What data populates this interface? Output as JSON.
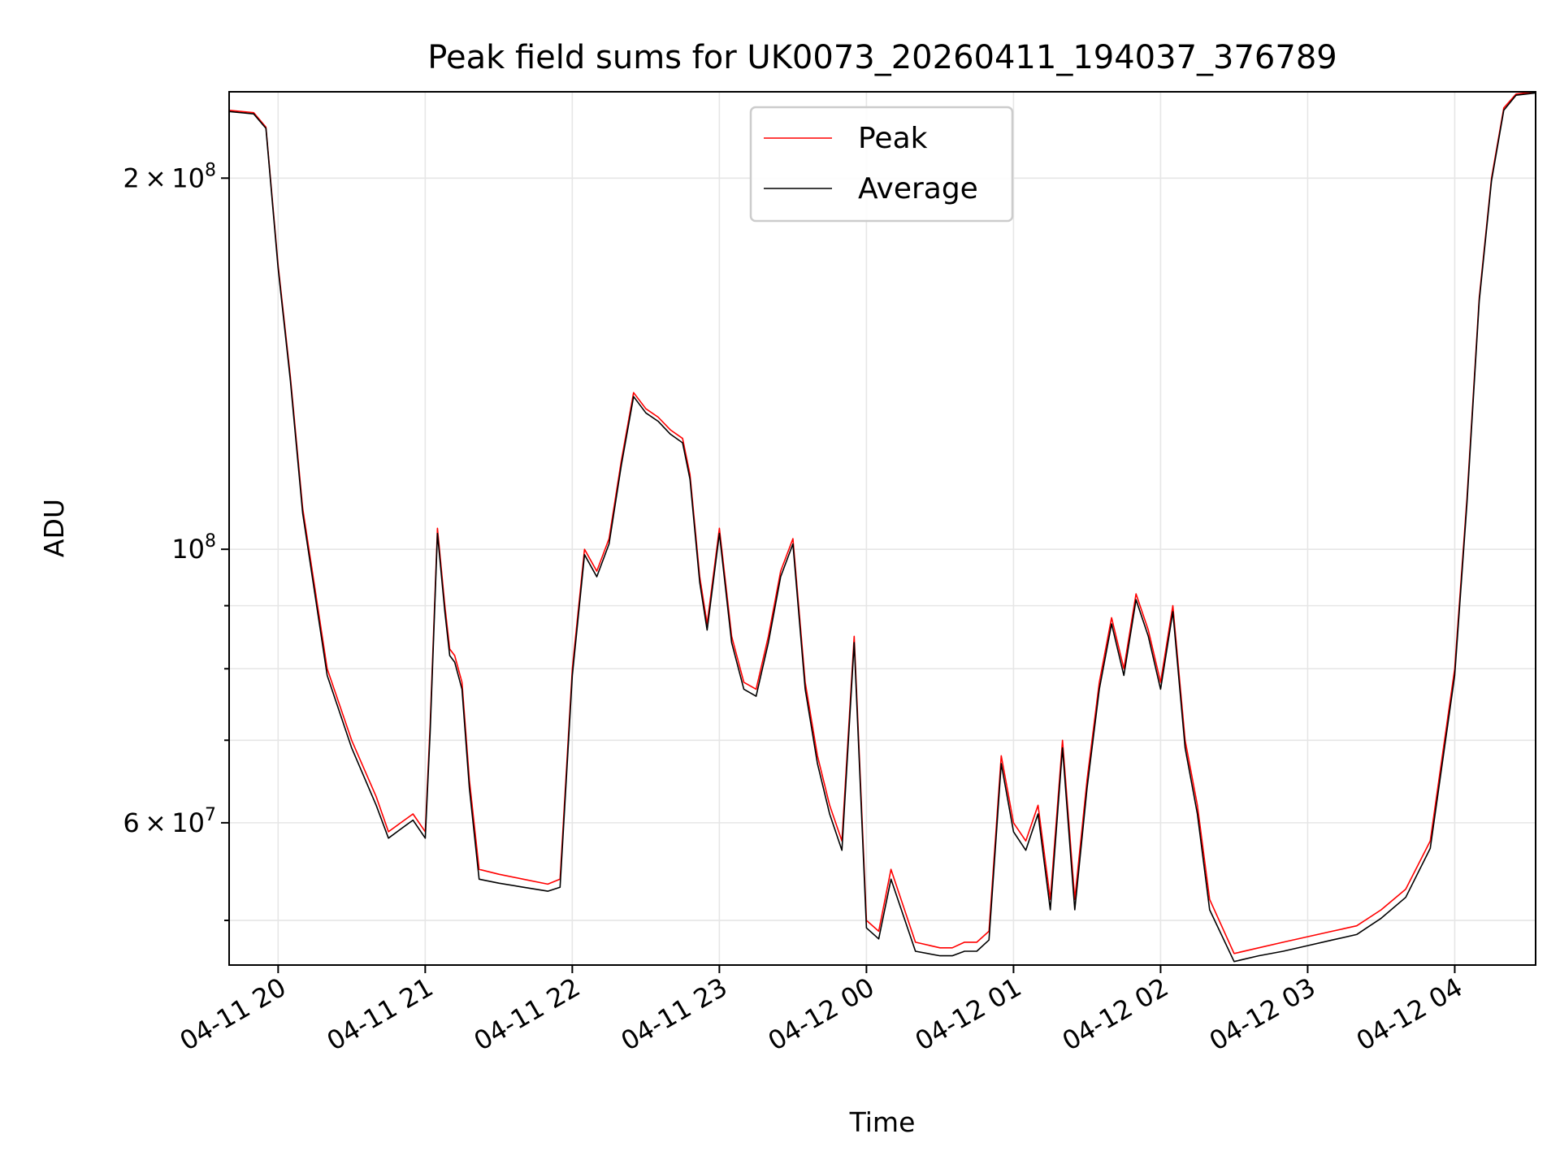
{
  "chart_data": {
    "type": "line",
    "title": "Peak field sums for UK0073_20260411_194037_376789",
    "xlabel": "Time",
    "ylabel": "ADU",
    "y_scale": "log",
    "ylim": [
      46000000,
      235000000
    ],
    "xlim": [
      "2026-04-11 19:40",
      "2026-04-12 04:33"
    ],
    "grid": true,
    "legend_position": "top-center",
    "x_tick_labels": [
      "04-11 20",
      "04-11 21",
      "04-11 22",
      "04-11 23",
      "04-12 00",
      "04-12 01",
      "04-12 02",
      "04-12 03",
      "04-12 04"
    ],
    "x_tick_values": [
      "2026-04-11 20:00",
      "2026-04-11 21:00",
      "2026-04-11 22:00",
      "2026-04-11 23:00",
      "2026-04-12 00:00",
      "2026-04-12 01:00",
      "2026-04-12 02:00",
      "2026-04-12 03:00",
      "2026-04-12 04:00"
    ],
    "y_tick_labels": [
      {
        "value": 60000000,
        "mantissa": "6",
        "exponent": "7"
      },
      {
        "value": 100000000,
        "mantissa": "",
        "exponent": "8"
      },
      {
        "value": 200000000,
        "mantissa": "2",
        "exponent": "8"
      }
    ],
    "y_minor_ticks": [
      50000000,
      70000000,
      80000000,
      90000000
    ],
    "series": [
      {
        "name": "Peak",
        "color": "#ff0000",
        "x": [
          "2026-04-11 19:40",
          "2026-04-11 19:50",
          "2026-04-11 19:55",
          "2026-04-11 20:00",
          "2026-04-11 20:05",
          "2026-04-11 20:10",
          "2026-04-11 20:20",
          "2026-04-11 20:30",
          "2026-04-11 20:40",
          "2026-04-11 20:45",
          "2026-04-11 20:50",
          "2026-04-11 20:55",
          "2026-04-11 21:00",
          "2026-04-11 21:02",
          "2026-04-11 21:05",
          "2026-04-11 21:08",
          "2026-04-11 21:10",
          "2026-04-11 21:12",
          "2026-04-11 21:15",
          "2026-04-11 21:18",
          "2026-04-11 21:22",
          "2026-04-11 21:30",
          "2026-04-11 21:40",
          "2026-04-11 21:50",
          "2026-04-11 21:55",
          "2026-04-11 22:00",
          "2026-04-11 22:05",
          "2026-04-11 22:10",
          "2026-04-11 22:15",
          "2026-04-11 22:20",
          "2026-04-11 22:25",
          "2026-04-11 22:30",
          "2026-04-11 22:35",
          "2026-04-11 22:40",
          "2026-04-11 22:45",
          "2026-04-11 22:48",
          "2026-04-11 22:52",
          "2026-04-11 22:55",
          "2026-04-11 23:00",
          "2026-04-11 23:05",
          "2026-04-11 23:10",
          "2026-04-11 23:15",
          "2026-04-11 23:20",
          "2026-04-11 23:25",
          "2026-04-11 23:30",
          "2026-04-11 23:35",
          "2026-04-11 23:40",
          "2026-04-11 23:45",
          "2026-04-11 23:50",
          "2026-04-11 23:55",
          "2026-04-12 00:00",
          "2026-04-12 00:05",
          "2026-04-12 00:10",
          "2026-04-12 00:20",
          "2026-04-12 00:30",
          "2026-04-12 00:35",
          "2026-04-12 00:40",
          "2026-04-12 00:45",
          "2026-04-12 00:50",
          "2026-04-12 00:55",
          "2026-04-12 01:00",
          "2026-04-12 01:05",
          "2026-04-12 01:10",
          "2026-04-12 01:15",
          "2026-04-12 01:20",
          "2026-04-12 01:25",
          "2026-04-12 01:30",
          "2026-04-12 01:35",
          "2026-04-12 01:40",
          "2026-04-12 01:45",
          "2026-04-12 01:50",
          "2026-04-12 01:55",
          "2026-04-12 02:00",
          "2026-04-12 02:05",
          "2026-04-12 02:10",
          "2026-04-12 02:15",
          "2026-04-12 02:20",
          "2026-04-12 02:30",
          "2026-04-12 02:40",
          "2026-04-12 02:50",
          "2026-04-12 03:00",
          "2026-04-12 03:10",
          "2026-04-12 03:20",
          "2026-04-12 03:30",
          "2026-04-12 03:40",
          "2026-04-12 03:50",
          "2026-04-12 04:00",
          "2026-04-12 04:05",
          "2026-04-12 04:10",
          "2026-04-12 04:15",
          "2026-04-12 04:20",
          "2026-04-12 04:25",
          "2026-04-12 04:33"
        ],
        "y": [
          227000000,
          226000000,
          220000000,
          170000000,
          138000000,
          108000000,
          80000000,
          70000000,
          63000000,
          59000000,
          60000000,
          61000000,
          59000000,
          72000000,
          104000000,
          90000000,
          83000000,
          82000000,
          78000000,
          65000000,
          55000000,
          54500000,
          54000000,
          53500000,
          54000000,
          80000000,
          100000000,
          96000000,
          102000000,
          118000000,
          134000000,
          130000000,
          128000000,
          125000000,
          123000000,
          115000000,
          95000000,
          87000000,
          104000000,
          85000000,
          78000000,
          77000000,
          85000000,
          96000000,
          102000000,
          78000000,
          68000000,
          62000000,
          58000000,
          85000000,
          50000000,
          49000000,
          55000000,
          48000000,
          47500000,
          47500000,
          48000000,
          48000000,
          49000000,
          68000000,
          60000000,
          58000000,
          62000000,
          52000000,
          70000000,
          52000000,
          65000000,
          78000000,
          88000000,
          80000000,
          92000000,
          86000000,
          78000000,
          90000000,
          70000000,
          62000000,
          52000000,
          47000000,
          47500000,
          48000000,
          48500000,
          49000000,
          49500000,
          51000000,
          53000000,
          58000000,
          80000000,
          110000000,
          160000000,
          200000000,
          228000000,
          234000000,
          235000000
        ]
      },
      {
        "name": "Average",
        "color": "#000000",
        "x": [
          "2026-04-11 19:40",
          "2026-04-11 19:50",
          "2026-04-11 19:55",
          "2026-04-11 20:00",
          "2026-04-11 20:05",
          "2026-04-11 20:10",
          "2026-04-11 20:20",
          "2026-04-11 20:30",
          "2026-04-11 20:40",
          "2026-04-11 20:45",
          "2026-04-11 20:50",
          "2026-04-11 20:55",
          "2026-04-11 21:00",
          "2026-04-11 21:02",
          "2026-04-11 21:05",
          "2026-04-11 21:08",
          "2026-04-11 21:10",
          "2026-04-11 21:12",
          "2026-04-11 21:15",
          "2026-04-11 21:18",
          "2026-04-11 21:22",
          "2026-04-11 21:30",
          "2026-04-11 21:40",
          "2026-04-11 21:50",
          "2026-04-11 21:55",
          "2026-04-11 22:00",
          "2026-04-11 22:05",
          "2026-04-11 22:10",
          "2026-04-11 22:15",
          "2026-04-11 22:20",
          "2026-04-11 22:25",
          "2026-04-11 22:30",
          "2026-04-11 22:35",
          "2026-04-11 22:40",
          "2026-04-11 22:45",
          "2026-04-11 22:48",
          "2026-04-11 22:52",
          "2026-04-11 22:55",
          "2026-04-11 23:00",
          "2026-04-11 23:05",
          "2026-04-11 23:10",
          "2026-04-11 23:15",
          "2026-04-11 23:20",
          "2026-04-11 23:25",
          "2026-04-11 23:30",
          "2026-04-11 23:35",
          "2026-04-11 23:40",
          "2026-04-11 23:45",
          "2026-04-11 23:50",
          "2026-04-11 23:55",
          "2026-04-12 00:00",
          "2026-04-12 00:05",
          "2026-04-12 00:10",
          "2026-04-12 00:20",
          "2026-04-12 00:30",
          "2026-04-12 00:35",
          "2026-04-12 00:40",
          "2026-04-12 00:45",
          "2026-04-12 00:50",
          "2026-04-12 00:55",
          "2026-04-12 01:00",
          "2026-04-12 01:05",
          "2026-04-12 01:10",
          "2026-04-12 01:15",
          "2026-04-12 01:20",
          "2026-04-12 01:25",
          "2026-04-12 01:30",
          "2026-04-12 01:35",
          "2026-04-12 01:40",
          "2026-04-12 01:45",
          "2026-04-12 01:50",
          "2026-04-12 01:55",
          "2026-04-12 02:00",
          "2026-04-12 02:05",
          "2026-04-12 02:10",
          "2026-04-12 02:15",
          "2026-04-12 02:20",
          "2026-04-12 02:30",
          "2026-04-12 02:40",
          "2026-04-12 02:50",
          "2026-04-12 03:00",
          "2026-04-12 03:10",
          "2026-04-12 03:20",
          "2026-04-12 03:30",
          "2026-04-12 03:40",
          "2026-04-12 03:50",
          "2026-04-12 04:00",
          "2026-04-12 04:05",
          "2026-04-12 04:10",
          "2026-04-12 04:15",
          "2026-04-12 04:20",
          "2026-04-12 04:25",
          "2026-04-12 04:33"
        ],
        "y": [
          226500000,
          225500000,
          219500000,
          169000000,
          137000000,
          107000000,
          79000000,
          69000000,
          62000000,
          58300000,
          59300000,
          60300000,
          58300000,
          71000000,
          103000000,
          89000000,
          82000000,
          81000000,
          77000000,
          64000000,
          54000000,
          53600000,
          53200000,
          52800000,
          53200000,
          79000000,
          99000000,
          95000000,
          101000000,
          117000000,
          133000000,
          129000000,
          127000000,
          124000000,
          122000000,
          114000000,
          94000000,
          86000000,
          103000000,
          84000000,
          77000000,
          76000000,
          84000000,
          95000000,
          101000000,
          77000000,
          67000000,
          61000000,
          57000000,
          84000000,
          49300000,
          48300000,
          54000000,
          47200000,
          46800000,
          46800000,
          47200000,
          47200000,
          48200000,
          67000000,
          59000000,
          57000000,
          61000000,
          51000000,
          69000000,
          51000000,
          64000000,
          77000000,
          87000000,
          79000000,
          91000000,
          85000000,
          77000000,
          89000000,
          69000000,
          61000000,
          51000000,
          46300000,
          46800000,
          47200000,
          47700000,
          48200000,
          48700000,
          50200000,
          52200000,
          57200000,
          79000000,
          109000000,
          159000000,
          199000000,
          227000000,
          233500000,
          234500000
        ]
      }
    ]
  }
}
